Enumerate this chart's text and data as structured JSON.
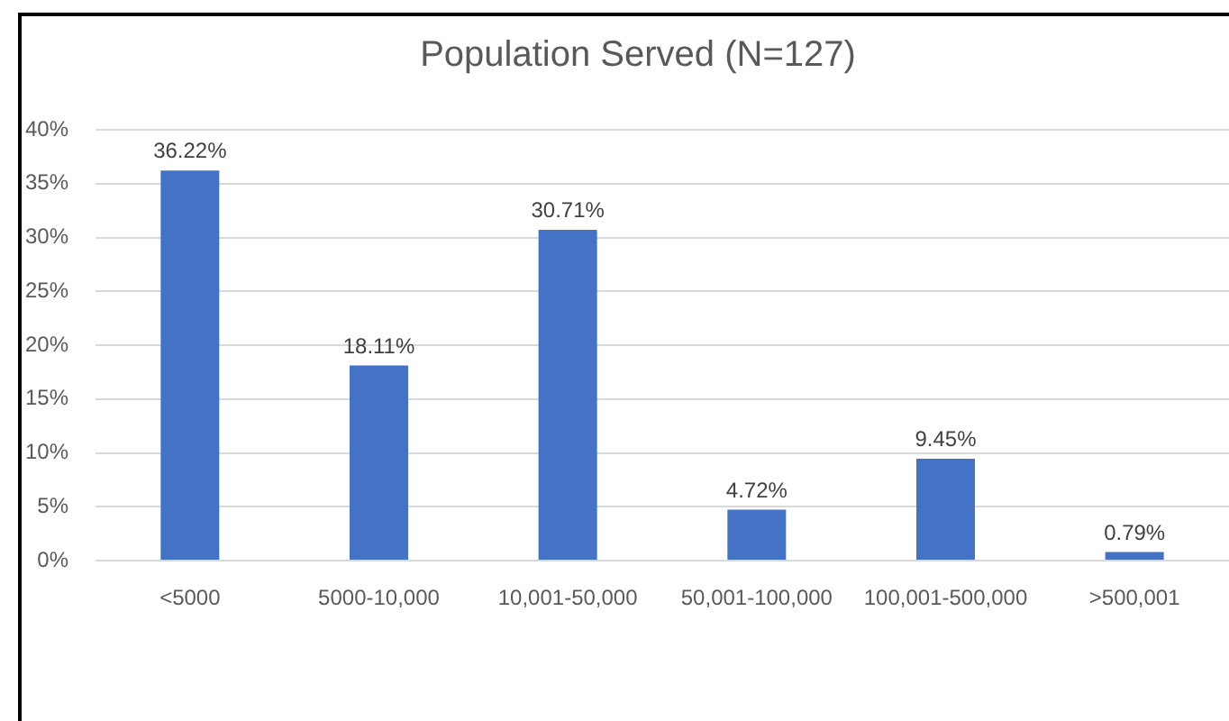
{
  "chart_data": {
    "type": "bar",
    "title": "Population Served (N=127)",
    "categories": [
      "<5000",
      "5000-10,000",
      "10,001-50,000",
      "50,001-100,000",
      "100,001-500,000",
      ">500,001"
    ],
    "values": [
      36.22,
      18.11,
      30.71,
      4.72,
      9.45,
      0.79
    ],
    "value_labels": [
      "36.22%",
      "18.11%",
      "30.71%",
      "4.72%",
      "9.45%",
      "0.79%"
    ],
    "color": "#4472c4",
    "ylim": [
      0,
      40
    ],
    "yticks": [
      {
        "value": 0,
        "label": "0%"
      },
      {
        "value": 5,
        "label": "5%"
      },
      {
        "value": 10,
        "label": "10%"
      },
      {
        "value": 15,
        "label": "15%"
      },
      {
        "value": 20,
        "label": "20%"
      },
      {
        "value": 25,
        "label": "25%"
      },
      {
        "value": 30,
        "label": "30%"
      },
      {
        "value": 35,
        "label": "35%"
      },
      {
        "value": 40,
        "label": "40%"
      }
    ],
    "grid": "y"
  }
}
